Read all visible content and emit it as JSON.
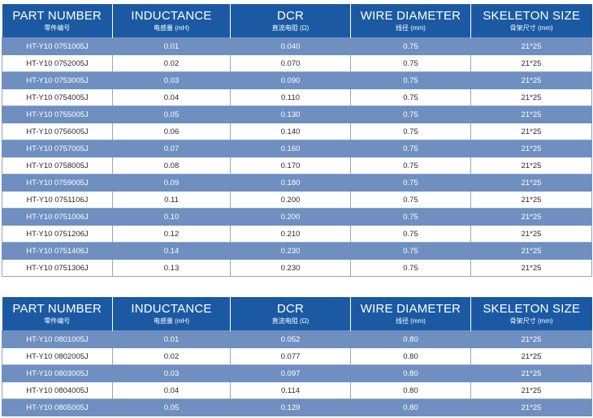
{
  "headers": [
    {
      "en": "PART NUMBER",
      "cn": "零件编号"
    },
    {
      "en": "INDUCTANCE",
      "cn": "电感量 (mH)"
    },
    {
      "en": "DCR",
      "cn": "直流电阻 (Ω)"
    },
    {
      "en": "WIRE DIAMETER",
      "cn": "线径 (mm)"
    },
    {
      "en": "SKELETON SIZE",
      "cn": "骨架尺寸 (mm)"
    }
  ],
  "tables": [
    {
      "rows": [
        [
          "HT-Y10 0751005J",
          "0.01",
          "0.040",
          "0.75",
          "21*25"
        ],
        [
          "HT-Y10 0752005J",
          "0.02",
          "0.070",
          "0.75",
          "21*25"
        ],
        [
          "HT-Y10 0753005J",
          "0.03",
          "0.090",
          "0.75",
          "21*25"
        ],
        [
          "HT-Y10 0754005J",
          "0.04",
          "0.110",
          "0.75",
          "21*25"
        ],
        [
          "HT-Y10 0755005J",
          "0.05",
          "0.130",
          "0.75",
          "21*25"
        ],
        [
          "HT-Y10 0756005J",
          "0.06",
          "0.140",
          "0.75",
          "21*25"
        ],
        [
          "HT-Y10 0757005J",
          "0.07",
          "0.160",
          "0.75",
          "21*25"
        ],
        [
          "HT-Y10 0758005J",
          "0.08",
          "0.170",
          "0.75",
          "21*25"
        ],
        [
          "HT-Y10 0759005J",
          "0.09",
          "0.180",
          "0.75",
          "21*25"
        ],
        [
          "HT-Y10 0751106J",
          "0.11",
          "0.200",
          "0.75",
          "21*25"
        ],
        [
          "HT-Y10 0751006J",
          "0.10",
          "0.200",
          "0.75",
          "21*25"
        ],
        [
          "HT-Y10 0751206J",
          "0.12",
          "0.210",
          "0.75",
          "21*25"
        ],
        [
          "HT-Y10 0751406J",
          "0.14",
          "0.230",
          "0.75",
          "21*25"
        ],
        [
          "HT-Y10 0751306J",
          "0.13",
          "0.230",
          "0.75",
          "21*25"
        ]
      ]
    },
    {
      "rows": [
        [
          "HT-Y10 0801005J",
          "0.01",
          "0.052",
          "0.80",
          "21*25"
        ],
        [
          "HT-Y10 0802005J",
          "0.02",
          "0.077",
          "0.80",
          "21*25"
        ],
        [
          "HT-Y10 0803005J",
          "0.03",
          "0.097",
          "0.80",
          "21*25"
        ],
        [
          "HT-Y10 0804005J",
          "0.04",
          "0.114",
          "0.80",
          "21*25"
        ],
        [
          "HT-Y10 0805005J",
          "0.05",
          "0.129",
          "0.80",
          "21*25"
        ]
      ]
    }
  ],
  "colors": {
    "header_bg": "#1b5aa3",
    "shaded_row_bg": "#6f8fc1",
    "plain_row_bg": "#ffffff"
  }
}
